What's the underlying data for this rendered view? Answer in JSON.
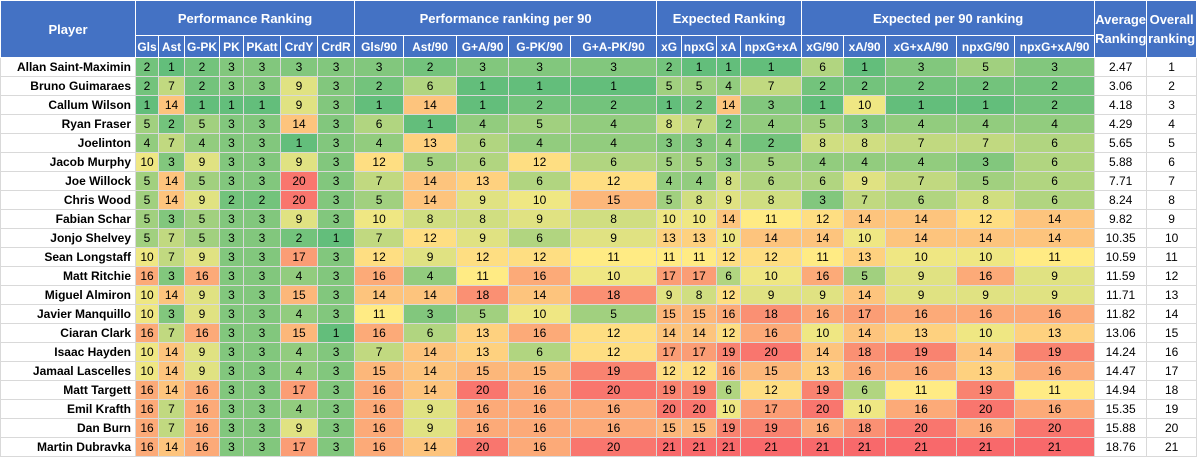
{
  "groups": [
    {
      "label": "Player",
      "span": 1
    },
    {
      "label": "Performance Ranking",
      "span": 7
    },
    {
      "label": "Performance ranking per 90",
      "span": 5
    },
    {
      "label": "Expected Ranking",
      "span": 4
    },
    {
      "label": "Expected per 90 ranking",
      "span": 5
    },
    {
      "label": "Average Ranking",
      "span": 1
    },
    {
      "label": "Overall ranking",
      "span": 1
    }
  ],
  "columns": [
    "Gls",
    "Ast",
    "G-PK",
    "PK",
    "PKatt",
    "CrdY",
    "CrdR",
    "Gls/90",
    "Ast/90",
    "G+A/90",
    "G-PK/90",
    "G+A-PK/90",
    "xG",
    "npxG",
    "xA",
    "npxG+xA",
    "xG/90",
    "xA/90",
    "xG+xA/90",
    "npxG/90",
    "npxG+xA/90"
  ],
  "rows": [
    {
      "player": "Allan Saint-Maximin",
      "ranks": [
        2,
        1,
        2,
        3,
        3,
        3,
        3,
        3,
        2,
        3,
        3,
        3,
        2,
        1,
        1,
        1,
        6,
        1,
        3,
        5,
        3
      ],
      "average": "2.47",
      "overall": "1"
    },
    {
      "player": "Bruno Guimaraes",
      "ranks": [
        2,
        7,
        2,
        3,
        3,
        9,
        3,
        2,
        6,
        1,
        1,
        1,
        5,
        5,
        4,
        7,
        2,
        2,
        2,
        2,
        2
      ],
      "average": "3.06",
      "overall": "2"
    },
    {
      "player": "Callum Wilson",
      "ranks": [
        1,
        14,
        1,
        1,
        1,
        9,
        3,
        1,
        14,
        1,
        2,
        2,
        1,
        2,
        14,
        3,
        1,
        10,
        1,
        1,
        2
      ],
      "average": "4.18",
      "overall": "3"
    },
    {
      "player": "Ryan Fraser",
      "ranks": [
        5,
        2,
        5,
        3,
        3,
        14,
        3,
        6,
        1,
        4,
        5,
        4,
        8,
        7,
        2,
        4,
        5,
        3,
        4,
        4,
        4
      ],
      "average": "4.29",
      "overall": "4"
    },
    {
      "player": "Joelinton",
      "ranks": [
        4,
        7,
        4,
        3,
        3,
        1,
        3,
        4,
        13,
        6,
        4,
        4,
        3,
        3,
        4,
        2,
        8,
        8,
        7,
        7,
        6
      ],
      "average": "5.65",
      "overall": "5"
    },
    {
      "player": "Jacob Murphy",
      "ranks": [
        10,
        3,
        9,
        3,
        3,
        9,
        3,
        12,
        5,
        6,
        12,
        6,
        5,
        5,
        3,
        5,
        4,
        4,
        4,
        3,
        6
      ],
      "average": "5.88",
      "overall": "6"
    },
    {
      "player": "Joe Willock",
      "ranks": [
        5,
        14,
        5,
        3,
        3,
        20,
        3,
        7,
        14,
        13,
        6,
        12,
        4,
        4,
        8,
        6,
        6,
        9,
        7,
        5,
        6
      ],
      "average": "7.71",
      "overall": "7"
    },
    {
      "player": "Chris Wood",
      "ranks": [
        5,
        14,
        9,
        2,
        2,
        20,
        3,
        5,
        14,
        9,
        10,
        15,
        5,
        8,
        9,
        8,
        3,
        7,
        6,
        8,
        6
      ],
      "average": "8.24",
      "overall": "8"
    },
    {
      "player": "Fabian Schar",
      "ranks": [
        5,
        3,
        5,
        3,
        3,
        9,
        3,
        10,
        8,
        8,
        9,
        8,
        10,
        10,
        14,
        11,
        12,
        14,
        14,
        12,
        14
      ],
      "average": "9.82",
      "overall": "9"
    },
    {
      "player": "Jonjo Shelvey",
      "ranks": [
        5,
        7,
        5,
        3,
        3,
        2,
        1,
        7,
        12,
        9,
        6,
        9,
        13,
        13,
        10,
        14,
        14,
        10,
        14,
        14,
        14
      ],
      "average": "10.35",
      "overall": "10"
    },
    {
      "player": "Sean Longstaff",
      "ranks": [
        10,
        7,
        9,
        3,
        3,
        17,
        3,
        12,
        9,
        12,
        12,
        11,
        11,
        11,
        12,
        12,
        11,
        13,
        10,
        10,
        11
      ],
      "average": "10.59",
      "overall": "11"
    },
    {
      "player": "Matt Ritchie",
      "ranks": [
        16,
        3,
        16,
        3,
        3,
        4,
        3,
        16,
        4,
        11,
        16,
        10,
        17,
        17,
        6,
        10,
        16,
        5,
        9,
        16,
        9
      ],
      "average": "11.59",
      "overall": "12"
    },
    {
      "player": "Miguel Almiron",
      "ranks": [
        10,
        14,
        9,
        3,
        3,
        15,
        3,
        14,
        14,
        18,
        14,
        18,
        9,
        8,
        12,
        9,
        9,
        14,
        9,
        9,
        9
      ],
      "average": "11.71",
      "overall": "13"
    },
    {
      "player": "Javier Manquillo",
      "ranks": [
        10,
        3,
        9,
        3,
        3,
        4,
        3,
        11,
        3,
        5,
        10,
        5,
        15,
        15,
        16,
        18,
        16,
        17,
        16,
        16,
        16
      ],
      "average": "11.82",
      "overall": "14"
    },
    {
      "player": "Ciaran Clark",
      "ranks": [
        16,
        7,
        16,
        3,
        3,
        15,
        1,
        16,
        6,
        13,
        16,
        12,
        14,
        14,
        12,
        16,
        10,
        14,
        13,
        10,
        13
      ],
      "average": "13.06",
      "overall": "15"
    },
    {
      "player": "Isaac Hayden",
      "ranks": [
        10,
        14,
        9,
        3,
        3,
        4,
        3,
        7,
        14,
        13,
        6,
        12,
        17,
        17,
        19,
        20,
        14,
        18,
        19,
        14,
        19
      ],
      "average": "14.24",
      "overall": "16"
    },
    {
      "player": "Jamaal Lascelles",
      "ranks": [
        10,
        14,
        9,
        3,
        3,
        4,
        3,
        15,
        14,
        15,
        15,
        19,
        12,
        12,
        16,
        15,
        13,
        16,
        16,
        13,
        16
      ],
      "average": "14.47",
      "overall": "17"
    },
    {
      "player": "Matt Targett",
      "ranks": [
        16,
        14,
        16,
        3,
        3,
        17,
        3,
        16,
        14,
        20,
        16,
        20,
        19,
        19,
        6,
        12,
        19,
        6,
        11,
        19,
        11
      ],
      "average": "14.94",
      "overall": "18"
    },
    {
      "player": "Emil Krafth",
      "ranks": [
        16,
        7,
        16,
        3,
        3,
        4,
        3,
        16,
        9,
        16,
        16,
        16,
        20,
        20,
        10,
        17,
        20,
        10,
        16,
        20,
        16
      ],
      "average": "15.35",
      "overall": "19"
    },
    {
      "player": "Dan Burn",
      "ranks": [
        16,
        7,
        16,
        3,
        3,
        9,
        3,
        16,
        9,
        16,
        16,
        16,
        15,
        15,
        19,
        19,
        16,
        18,
        20,
        16,
        20
      ],
      "average": "15.88",
      "overall": "20"
    },
    {
      "player": "Martin Dubravka",
      "ranks": [
        16,
        14,
        16,
        3,
        3,
        17,
        3,
        16,
        14,
        20,
        16,
        20,
        21,
        21,
        21,
        21,
        21,
        21,
        21,
        21,
        21
      ],
      "average": "18.76",
      "overall": "21"
    }
  ]
}
